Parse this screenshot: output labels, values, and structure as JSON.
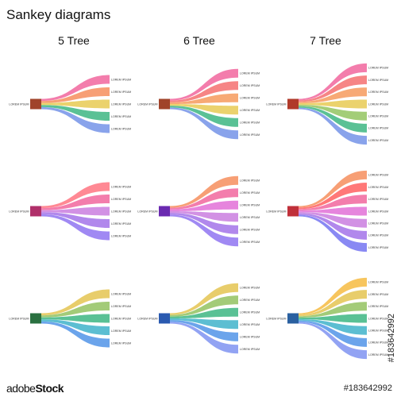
{
  "title": "Sankey diagrams",
  "columns": [
    "5 Tree",
    "6 Tree",
    "7 Tree"
  ],
  "source_label": "LOREM IPSUM",
  "branch_label": "LOREM IPSUM",
  "stock": {
    "logo_prefix": "adobe",
    "logo": "Stock",
    "id": "#183642992"
  },
  "diagrams": [
    {
      "name": "5-tree-warm",
      "branches": 5,
      "colors": [
        "#f0609a",
        "#f58a57",
        "#e6c84d",
        "#36b37e",
        "#6f8fe6"
      ],
      "source_color": "#a0432a"
    },
    {
      "name": "6-tree-warm",
      "branches": 6,
      "colors": [
        "#f0609a",
        "#f46a6a",
        "#f59657",
        "#e6c84d",
        "#36b37e",
        "#6f8fe6"
      ],
      "source_color": "#a0432a"
    },
    {
      "name": "7-tree-warm",
      "branches": 7,
      "colors": [
        "#f0609a",
        "#f46a6a",
        "#f59657",
        "#e6c84d",
        "#8fc25a",
        "#36b37e",
        "#6f8fe6"
      ],
      "source_color": "#b03a2a"
    },
    {
      "name": "5-tree-pinkviolet",
      "branches": 5,
      "colors": [
        "#ff6f7d",
        "#f0609a",
        "#c879de",
        "#a06ee8",
        "#8b6ff0"
      ],
      "source_color": "#b0306a"
    },
    {
      "name": "6-tree-pinkviolet",
      "branches": 6,
      "colors": [
        "#f58a57",
        "#f0609a",
        "#e06ad6",
        "#c879de",
        "#a06ee8",
        "#8b6ff0"
      ],
      "source_color": "#6a2ab0"
    },
    {
      "name": "7-tree-pinkviolet",
      "branches": 7,
      "colors": [
        "#f58a57",
        "#ff5a5a",
        "#f0609a",
        "#e06ad6",
        "#c879de",
        "#a06ee8",
        "#6f6ff0"
      ],
      "source_color": "#c0303a"
    },
    {
      "name": "5-tree-green",
      "branches": 5,
      "colors": [
        "#e3c24a",
        "#8fbf5a",
        "#36b37e",
        "#38b0c8",
        "#4a90e6"
      ],
      "source_color": "#2a7040"
    },
    {
      "name": "6-tree-green",
      "branches": 6,
      "colors": [
        "#e3c24a",
        "#8fbf5a",
        "#36b37e",
        "#38b0c8",
        "#4a90e6",
        "#7a8ff0"
      ],
      "source_color": "#2a5ab0"
    },
    {
      "name": "7-tree-green",
      "branches": 7,
      "colors": [
        "#f5b83a",
        "#e3c24a",
        "#8fbf5a",
        "#36b37e",
        "#38b0c8",
        "#4a90e6",
        "#7a8ff0"
      ],
      "source_color": "#2a60a0"
    }
  ]
}
